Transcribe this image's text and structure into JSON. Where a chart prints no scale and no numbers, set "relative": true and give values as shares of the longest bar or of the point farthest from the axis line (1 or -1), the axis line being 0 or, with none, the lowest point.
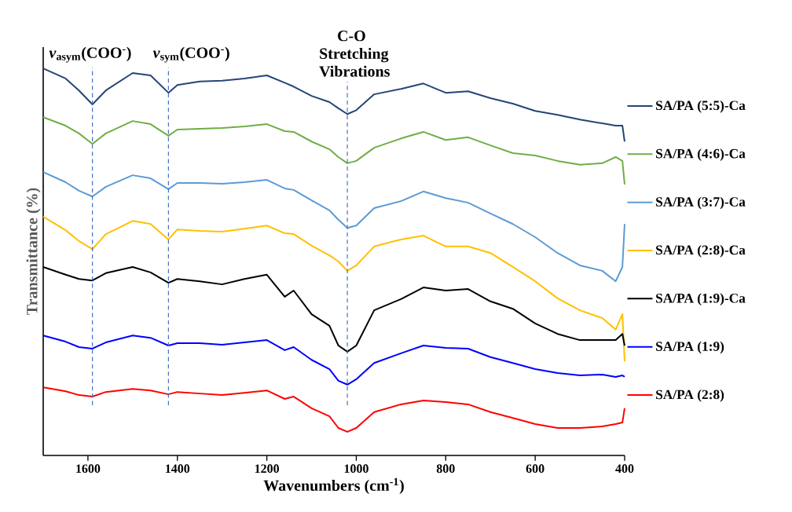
{
  "chart_data": {
    "type": "line",
    "relative": true,
    "xlabel": "Wavenumbers (cm$^{-1}$)",
    "ylabel": "Transmittance (%)",
    "xlim": [
      1700,
      400
    ],
    "xticks": [
      1600,
      1400,
      1200,
      1000,
      800,
      600,
      400
    ],
    "legend": "right",
    "x": [
      1700,
      1650,
      1620,
      1590,
      1560,
      1500,
      1460,
      1420,
      1400,
      1350,
      1300,
      1250,
      1200,
      1160,
      1140,
      1100,
      1060,
      1040,
      1020,
      1000,
      960,
      900,
      850,
      800,
      750,
      700,
      650,
      600,
      550,
      500,
      450,
      420,
      405,
      400
    ],
    "series": [
      {
        "name": "SA/PA (5:5)-Ca",
        "color": "#264478",
        "values": [
          1.0,
          0.974,
          0.943,
          0.907,
          0.943,
          0.988,
          0.982,
          0.937,
          0.957,
          0.966,
          0.968,
          0.974,
          0.982,
          0.963,
          0.953,
          0.929,
          0.913,
          0.897,
          0.882,
          0.892,
          0.933,
          0.947,
          0.961,
          0.937,
          0.941,
          0.923,
          0.909,
          0.89,
          0.88,
          0.868,
          0.858,
          0.852,
          0.852,
          0.811
        ]
      },
      {
        "name": "SA/PA (4:6)-Ca",
        "color": "#70ad47",
        "values": [
          0.874,
          0.852,
          0.832,
          0.805,
          0.832,
          0.864,
          0.856,
          0.826,
          0.842,
          0.844,
          0.846,
          0.85,
          0.856,
          0.838,
          0.836,
          0.811,
          0.791,
          0.771,
          0.755,
          0.761,
          0.795,
          0.819,
          0.836,
          0.815,
          0.822,
          0.801,
          0.781,
          0.775,
          0.761,
          0.751,
          0.755,
          0.771,
          0.761,
          0.7
        ]
      },
      {
        "name": "SA/PA (3:7)-Ca",
        "color": "#5b9bd5",
        "values": [
          0.732,
          0.706,
          0.684,
          0.669,
          0.694,
          0.724,
          0.716,
          0.688,
          0.704,
          0.704,
          0.702,
          0.706,
          0.712,
          0.69,
          0.686,
          0.659,
          0.633,
          0.609,
          0.588,
          0.594,
          0.639,
          0.657,
          0.682,
          0.665,
          0.653,
          0.625,
          0.598,
          0.564,
          0.523,
          0.491,
          0.477,
          0.45,
          0.487,
          0.598
        ]
      },
      {
        "name": "SA/PA (2:8)-Ca",
        "color": "#ffc000",
        "values": [
          0.617,
          0.582,
          0.554,
          0.533,
          0.572,
          0.606,
          0.598,
          0.558,
          0.584,
          0.58,
          0.578,
          0.586,
          0.594,
          0.574,
          0.572,
          0.542,
          0.517,
          0.501,
          0.477,
          0.491,
          0.54,
          0.558,
          0.568,
          0.54,
          0.54,
          0.523,
          0.487,
          0.45,
          0.406,
          0.375,
          0.355,
          0.325,
          0.365,
          0.243
        ]
      },
      {
        "name": "SA/PA (1:9)-Ca",
        "color": "#000000",
        "values": [
          0.487,
          0.467,
          0.456,
          0.452,
          0.471,
          0.487,
          0.473,
          0.446,
          0.456,
          0.45,
          0.442,
          0.456,
          0.467,
          0.41,
          0.426,
          0.365,
          0.335,
          0.284,
          0.268,
          0.284,
          0.375,
          0.404,
          0.434,
          0.426,
          0.43,
          0.398,
          0.379,
          0.341,
          0.314,
          0.298,
          0.298,
          0.298,
          0.314,
          0.284
        ]
      },
      {
        "name": "SA/PA (1:9)",
        "color": "#0000ff",
        "values": [
          0.31,
          0.294,
          0.28,
          0.276,
          0.292,
          0.31,
          0.304,
          0.284,
          0.29,
          0.29,
          0.286,
          0.292,
          0.298,
          0.272,
          0.28,
          0.247,
          0.223,
          0.193,
          0.183,
          0.197,
          0.239,
          0.264,
          0.284,
          0.278,
          0.276,
          0.254,
          0.239,
          0.223,
          0.213,
          0.207,
          0.209,
          0.203,
          0.207,
          0.203
        ]
      },
      {
        "name": "SA/PA (2:8)",
        "color": "#ff0000",
        "values": [
          0.176,
          0.166,
          0.156,
          0.152,
          0.164,
          0.172,
          0.168,
          0.158,
          0.164,
          0.16,
          0.156,
          0.162,
          0.168,
          0.146,
          0.152,
          0.122,
          0.101,
          0.071,
          0.061,
          0.071,
          0.112,
          0.132,
          0.142,
          0.138,
          0.132,
          0.112,
          0.097,
          0.081,
          0.071,
          0.071,
          0.075,
          0.081,
          0.085,
          0.122
        ]
      }
    ],
    "ref_lines": [
      {
        "axis": "x",
        "value": 1590,
        "label": "*v*$_{asym}$(COO$^{-}$)",
        "color": "#4472c4",
        "line_style": "dashed"
      },
      {
        "axis": "x",
        "value": 1420,
        "label": "*v*$_{sym}$(COO$^{-}$)",
        "color": "#4472c4",
        "line_style": "dashed"
      },
      {
        "axis": "x",
        "value": 1020,
        "label": "C-O Stretching Vibrations",
        "color": "#4472c4",
        "line_style": "dashed"
      }
    ]
  }
}
